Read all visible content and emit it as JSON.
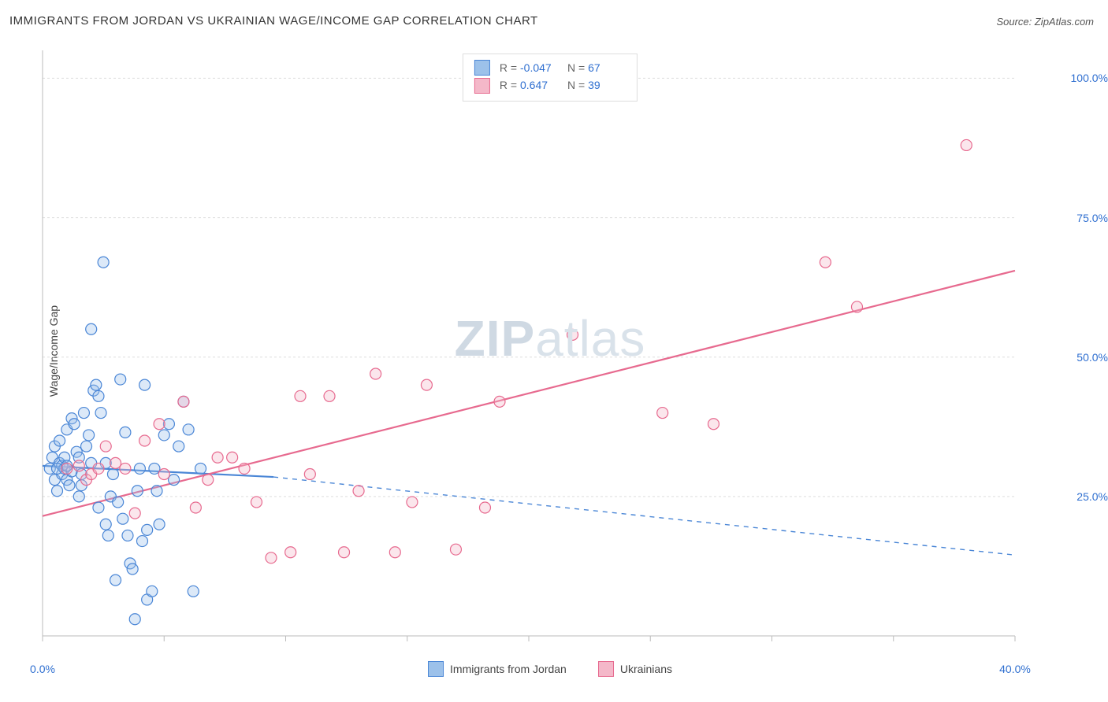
{
  "title": "IMMIGRANTS FROM JORDAN VS UKRAINIAN WAGE/INCOME GAP CORRELATION CHART",
  "source_label": "Source: ZipAtlas.com",
  "ylabel": "Wage/Income Gap",
  "watermark": {
    "bold": "ZIP",
    "rest": "atlas"
  },
  "chart": {
    "type": "scatter",
    "background_color": "#ffffff",
    "grid_color": "#dddddd",
    "axis_color": "#bbbbbb",
    "tick_color": "#bbbbbb",
    "ytick_label_color": "#2f6fd0",
    "xtick_label_color": "#2f6fd0",
    "xlim": [
      0,
      40
    ],
    "ylim": [
      0,
      105
    ],
    "xtick_step": 5,
    "yticks": [
      25,
      50,
      75,
      100
    ],
    "xtick_labels": {
      "0": "0.0%",
      "40": "40.0%"
    },
    "ytick_labels": {
      "25": "25.0%",
      "50": "50.0%",
      "75": "75.0%",
      "100": "100.0%"
    },
    "marker_radius": 7,
    "marker_stroke_width": 1.2,
    "marker_fill_opacity": 0.35,
    "line_width_solid": 2.2,
    "line_width_dash": 1.4,
    "dash_pattern": "6,6",
    "series": [
      {
        "name": "Immigrants from Jordan",
        "color_stroke": "#4a86d6",
        "color_fill": "#9cc1ea",
        "R": "-0.047",
        "N": "67",
        "regression": {
          "x1": 0,
          "y1": 30.5,
          "x2": 9.5,
          "y2": 28.5,
          "dash_after_x": 9.5,
          "x3": 40,
          "y3": 14.5
        },
        "points": [
          [
            0.3,
            30
          ],
          [
            0.4,
            32
          ],
          [
            0.5,
            28
          ],
          [
            0.5,
            34
          ],
          [
            0.6,
            26
          ],
          [
            0.7,
            31
          ],
          [
            0.7,
            35
          ],
          [
            0.8,
            29
          ],
          [
            0.8,
            30.5
          ],
          [
            0.9,
            30
          ],
          [
            0.9,
            32
          ],
          [
            1.0,
            28
          ],
          [
            1.0,
            37
          ],
          [
            1.1,
            27
          ],
          [
            1.2,
            39
          ],
          [
            1.3,
            38
          ],
          [
            1.4,
            33
          ],
          [
            1.5,
            25
          ],
          [
            1.5,
            32
          ],
          [
            1.6,
            29
          ],
          [
            1.6,
            27
          ],
          [
            1.7,
            40
          ],
          [
            1.8,
            34
          ],
          [
            1.9,
            36
          ],
          [
            2.0,
            31
          ],
          [
            2.0,
            55
          ],
          [
            2.1,
            44
          ],
          [
            2.2,
            45
          ],
          [
            2.3,
            23
          ],
          [
            2.3,
            43
          ],
          [
            2.4,
            40
          ],
          [
            2.5,
            67
          ],
          [
            2.6,
            20
          ],
          [
            2.7,
            18
          ],
          [
            2.8,
            25
          ],
          [
            2.9,
            29
          ],
          [
            3.0,
            10
          ],
          [
            3.1,
            24
          ],
          [
            3.2,
            46
          ],
          [
            3.3,
            21
          ],
          [
            3.4,
            36.5
          ],
          [
            3.5,
            18
          ],
          [
            3.6,
            13
          ],
          [
            3.7,
            12
          ],
          [
            3.8,
            3
          ],
          [
            3.9,
            26
          ],
          [
            4.0,
            30
          ],
          [
            4.1,
            17
          ],
          [
            4.2,
            45
          ],
          [
            4.3,
            19
          ],
          [
            4.3,
            6.5
          ],
          [
            4.5,
            8
          ],
          [
            4.6,
            30
          ],
          [
            4.7,
            26
          ],
          [
            4.8,
            20
          ],
          [
            5.0,
            36
          ],
          [
            5.2,
            38
          ],
          [
            5.4,
            28
          ],
          [
            5.6,
            34
          ],
          [
            5.8,
            42
          ],
          [
            6.0,
            37
          ],
          [
            6.2,
            8
          ],
          [
            6.5,
            30
          ],
          [
            2.6,
            31
          ],
          [
            1.2,
            29.5
          ],
          [
            1.0,
            30.5
          ],
          [
            0.6,
            30
          ]
        ]
      },
      {
        "name": "Ukrainians",
        "color_stroke": "#e76a8f",
        "color_fill": "#f4b8c9",
        "R": "0.647",
        "N": "39",
        "regression": {
          "x1": 0,
          "y1": 21.5,
          "x2": 40,
          "y2": 65.5
        },
        "points": [
          [
            1.0,
            30
          ],
          [
            1.5,
            30.5
          ],
          [
            1.8,
            28
          ],
          [
            2.0,
            29
          ],
          [
            2.3,
            30
          ],
          [
            2.6,
            34
          ],
          [
            3.0,
            31
          ],
          [
            3.4,
            30
          ],
          [
            3.8,
            22
          ],
          [
            4.2,
            35
          ],
          [
            4.8,
            38
          ],
          [
            5.0,
            29
          ],
          [
            5.8,
            42
          ],
          [
            6.3,
            23
          ],
          [
            6.8,
            28
          ],
          [
            7.2,
            32
          ],
          [
            7.8,
            32
          ],
          [
            8.3,
            30
          ],
          [
            8.8,
            24
          ],
          [
            9.4,
            14
          ],
          [
            10.2,
            15
          ],
          [
            10.6,
            43
          ],
          [
            11.0,
            29
          ],
          [
            11.8,
            43
          ],
          [
            12.4,
            15
          ],
          [
            13.0,
            26
          ],
          [
            13.7,
            47
          ],
          [
            14.5,
            15
          ],
          [
            15.2,
            24
          ],
          [
            15.8,
            45
          ],
          [
            17.0,
            15.5
          ],
          [
            18.2,
            23
          ],
          [
            18.8,
            42
          ],
          [
            21.8,
            54
          ],
          [
            25.5,
            40
          ],
          [
            27.6,
            38
          ],
          [
            32.2,
            67
          ],
          [
            33.5,
            59
          ],
          [
            38.0,
            88
          ]
        ]
      }
    ],
    "legend_bottom": [
      {
        "label": "Immigrants from Jordan",
        "fill": "#9cc1ea",
        "stroke": "#4a86d6"
      },
      {
        "label": "Ukrainians",
        "fill": "#f4b8c9",
        "stroke": "#e76a8f"
      }
    ]
  }
}
